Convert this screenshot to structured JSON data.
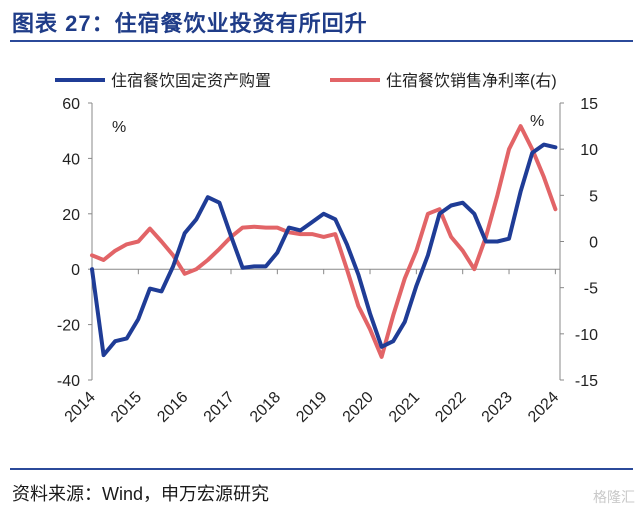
{
  "header": {
    "title": "图表 27：住宿餐饮业投资有所回升"
  },
  "footer": {
    "source": "资料来源：Wind，申万宏源研究",
    "watermark": "格隆汇"
  },
  "colors": {
    "investment": "#1f3c96",
    "margin": "#e26467",
    "title": "#1f3c88"
  },
  "chart_data": {
    "type": "line",
    "title": "",
    "left_axis": {
      "unit": "%",
      "ylim": [
        -40,
        60
      ],
      "ticks": [
        -40,
        -20,
        0,
        20,
        40,
        60
      ]
    },
    "right_axis": {
      "unit": "%",
      "ylim": [
        -15,
        15
      ],
      "ticks": [
        -15,
        -10,
        -5,
        0,
        5,
        10,
        15
      ]
    },
    "x_ticks": [
      "2014",
      "2015",
      "2016",
      "2017",
      "2018",
      "2019",
      "2020",
      "2021",
      "2022",
      "2023",
      "2024"
    ],
    "x_range": [
      2014,
      2024.1
    ],
    "series": [
      {
        "name": "住宿餐饮固定资产购置",
        "axis": "left",
        "x": [
          2014.0,
          2014.25,
          2014.5,
          2014.75,
          2015.0,
          2015.25,
          2015.5,
          2015.75,
          2016.0,
          2016.25,
          2016.5,
          2016.75,
          2017.0,
          2017.25,
          2017.5,
          2017.75,
          2018.0,
          2018.25,
          2018.5,
          2018.75,
          2019.0,
          2019.25,
          2019.5,
          2019.75,
          2020.0,
          2020.25,
          2020.5,
          2020.75,
          2021.0,
          2021.25,
          2021.5,
          2021.75,
          2022.0,
          2022.25,
          2022.5,
          2022.75,
          2023.0,
          2023.25,
          2023.5,
          2023.75,
          2024.0
        ],
        "y": [
          0,
          -31,
          -26,
          -25,
          -18,
          -7,
          -8,
          1,
          13,
          18,
          26,
          24,
          12,
          0.5,
          1,
          1,
          6,
          15,
          14,
          17,
          20,
          18,
          9,
          -2,
          -16,
          -28,
          -26,
          -19,
          -6,
          5,
          20,
          23,
          24,
          20,
          10,
          10,
          11,
          28,
          42,
          45,
          44
        ]
      },
      {
        "name": "住宿餐饮销售净利率(右)",
        "axis": "right",
        "x": [
          2014.0,
          2014.25,
          2014.5,
          2014.75,
          2015.0,
          2015.25,
          2015.5,
          2015.75,
          2016.0,
          2016.25,
          2016.5,
          2016.75,
          2017.0,
          2017.25,
          2017.5,
          2017.75,
          2018.0,
          2018.25,
          2018.5,
          2018.75,
          2019.0,
          2019.25,
          2019.5,
          2019.75,
          2020.0,
          2020.25,
          2020.5,
          2020.75,
          2021.0,
          2021.25,
          2021.5,
          2021.75,
          2022.0,
          2022.25,
          2022.5,
          2022.75,
          2023.0,
          2023.25,
          2023.5,
          2023.75,
          2024.0
        ],
        "y": [
          -1.5,
          -2,
          -1,
          -0.3,
          0,
          1.4,
          0,
          -1.5,
          -3.5,
          -3,
          -2,
          -0.8,
          0.5,
          1.5,
          1.6,
          1.5,
          1.5,
          1,
          0.8,
          0.8,
          0.5,
          0.8,
          -3,
          -7,
          -9.5,
          -12.5,
          -8,
          -4,
          -1,
          3,
          3.5,
          0.5,
          -1,
          -3,
          0.5,
          5,
          10,
          12.5,
          10,
          7,
          3.5
        ]
      }
    ]
  }
}
